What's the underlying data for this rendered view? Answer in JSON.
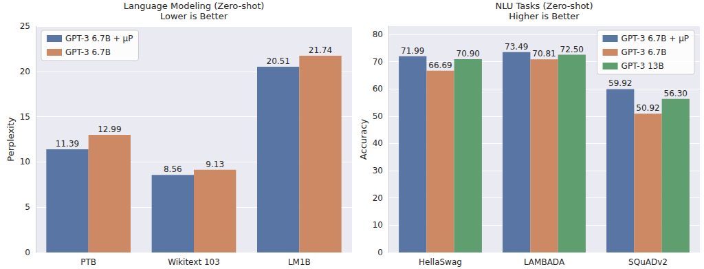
{
  "chart_data": [
    {
      "type": "bar",
      "title": "Language Modeling (Zero-shot)",
      "subtitle": "Lower is Better",
      "y_label": "Perplexity",
      "categories": [
        "PTB",
        "Wikitext 103",
        "LM1B"
      ],
      "series": [
        {
          "name": "GPT-3 6.7B + μP",
          "color": "#5975a4",
          "values": [
            11.39,
            8.56,
            20.51
          ]
        },
        {
          "name": "GPT-3 6.7B",
          "color": "#cc8963",
          "values": [
            12.99,
            9.13,
            21.74
          ]
        }
      ],
      "ylim": [
        0,
        25
      ],
      "yticks": [
        0,
        5,
        10,
        15,
        20,
        25
      ],
      "grid": true,
      "legend": "upper left",
      "data_labels": true
    },
    {
      "type": "bar",
      "title": "NLU Tasks (Zero-shot)",
      "subtitle": "Higher is Better",
      "y_label": "Accuracy",
      "categories": [
        "HellaSwag",
        "LAMBADA",
        "SQuADv2"
      ],
      "series": [
        {
          "name": "GPT-3 6.7B + μP",
          "color": "#5975a4",
          "values": [
            71.99,
            73.49,
            59.92
          ]
        },
        {
          "name": "GPT-3 6.7B",
          "color": "#cc8963",
          "values": [
            66.69,
            70.81,
            50.92
          ]
        },
        {
          "name": "GPT-3 13B",
          "color": "#5f9e6e",
          "values": [
            70.9,
            72.5,
            56.3
          ],
          "value_labels": [
            "70.90",
            "72.50",
            "56.30"
          ]
        }
      ],
      "ylim": [
        0,
        83
      ],
      "yticks": [
        0,
        10,
        20,
        30,
        40,
        50,
        60,
        70,
        80
      ],
      "grid": true,
      "legend": "upper right",
      "data_labels": true
    }
  ]
}
